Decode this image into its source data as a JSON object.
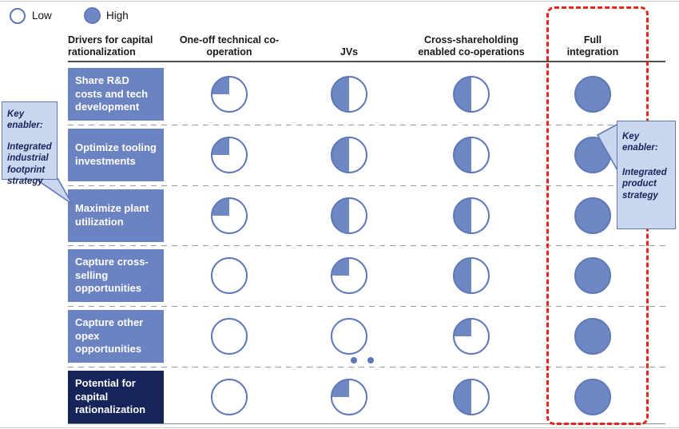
{
  "legend": {
    "low_label": "Low",
    "high_label": "High"
  },
  "columns": [
    {
      "key": "drivers",
      "label": "Drivers for capital rationalization"
    },
    {
      "key": "oneoff",
      "label": "One-off technical co-operation"
    },
    {
      "key": "jvs",
      "label": "JVs"
    },
    {
      "key": "cross",
      "label": "Cross-shareholding enabled co-operations"
    },
    {
      "key": "full",
      "label": "Full integration"
    }
  ],
  "rows": [
    {
      "label": "Share R&D costs and tech development",
      "values": [
        0.25,
        0.5,
        0.5,
        1
      ],
      "summary": false
    },
    {
      "label": "Optimize tooling investments",
      "values": [
        0.25,
        0.5,
        0.5,
        1
      ],
      "summary": false
    },
    {
      "label": "Maximize plant utilization",
      "values": [
        0.25,
        0.5,
        0.5,
        1
      ],
      "summary": false
    },
    {
      "label": "Capture cross-selling opportunities",
      "values": [
        0,
        0.25,
        0.5,
        1
      ],
      "summary": false
    },
    {
      "label": "Capture other opex opportunities",
      "values": [
        0,
        0,
        0.25,
        1
      ],
      "summary": false
    },
    {
      "label": "Potential for capital rationalization",
      "values": [
        0,
        0.25,
        0.5,
        1
      ],
      "summary": true
    }
  ],
  "callouts": {
    "left": {
      "title": "Key enabler:",
      "body": "Integrated industrial footprint strategy"
    },
    "right": {
      "title": "Key enabler:",
      "body": "Integrated product strategy"
    }
  },
  "colors": {
    "ball": "#6F87C3",
    "ballBorder": "#5F78B8",
    "rowBox": "#6B83C1",
    "navy": "#16245C",
    "calloutBg": "#CBD6EF",
    "calloutBorder": "#6078B8",
    "red": "#E6261F"
  }
}
